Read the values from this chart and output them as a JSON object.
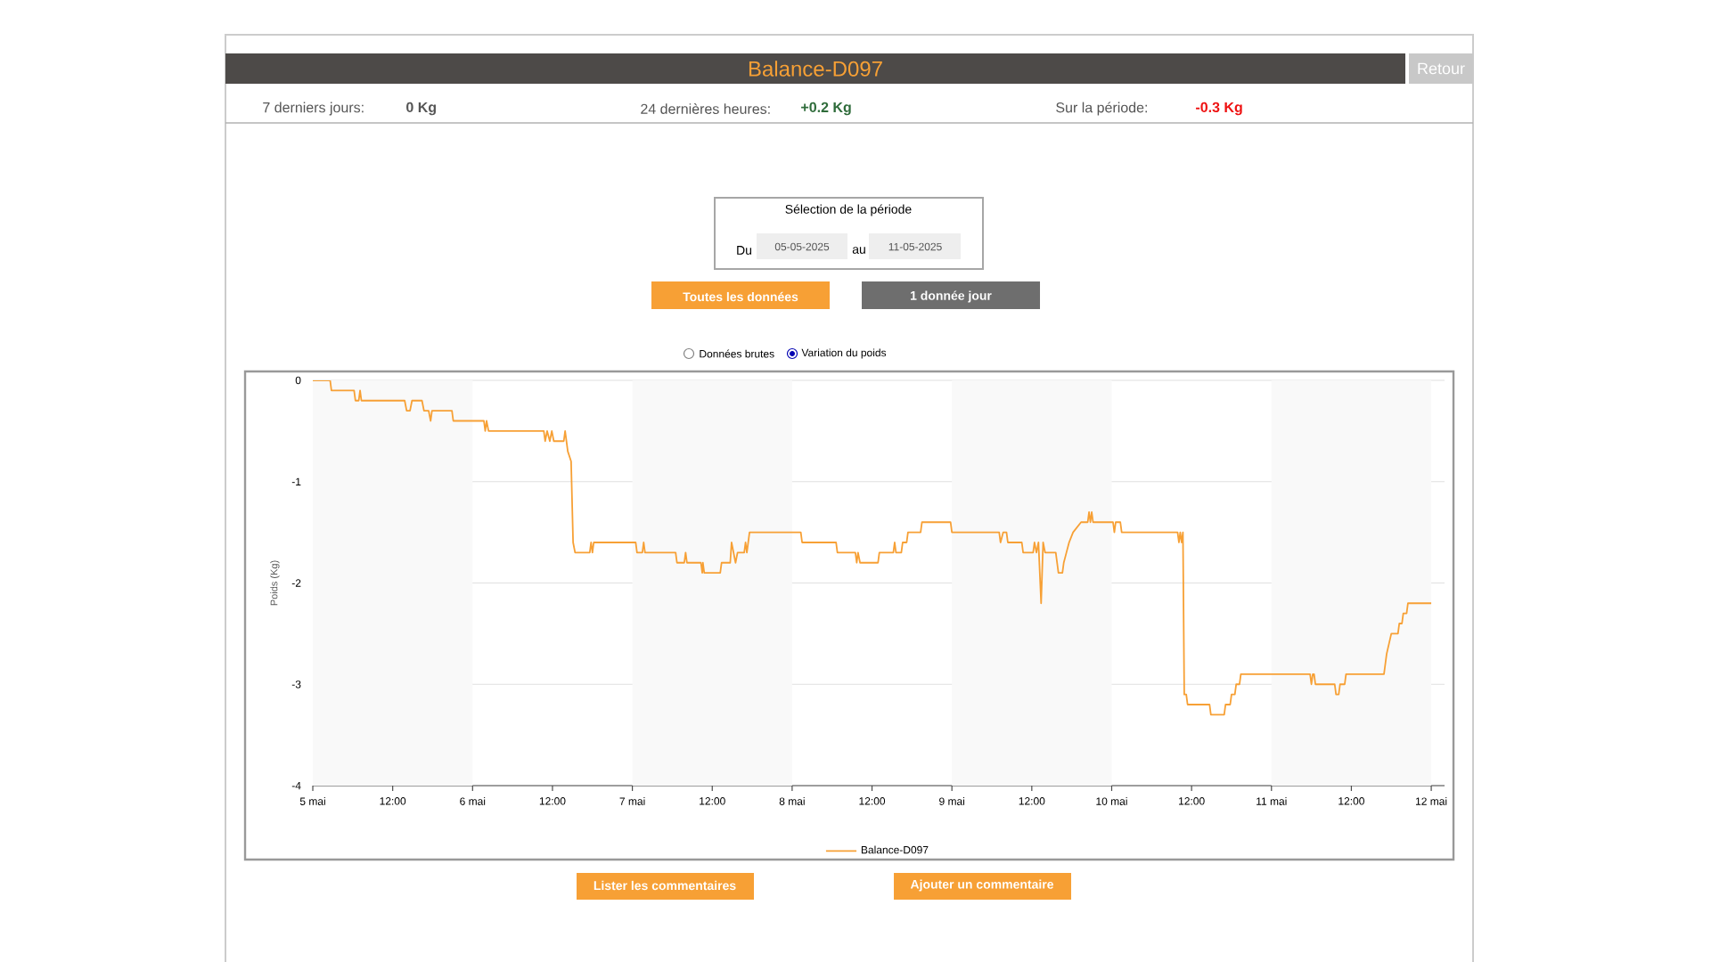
{
  "chart_data": {
    "type": "line",
    "title": "Balance-D097",
    "ylabel": "Poids (Kg)",
    "x": [
      "2025-05-05T00:00",
      "2025-05-05T02:36",
      "2025-05-05T02:48",
      "2025-05-05T06:12",
      "2025-05-05T06:24",
      "2025-05-05T06:54",
      "2025-05-05T07:06",
      "2025-05-05T07:18",
      "2025-05-05T13:48",
      "2025-05-05T14:06",
      "2025-05-05T14:36",
      "2025-05-05T14:54",
      "2025-05-05T16:24",
      "2025-05-05T16:42",
      "2025-05-05T17:24",
      "2025-05-05T17:42",
      "2025-05-05T17:54",
      "2025-05-05T20:54",
      "2025-05-05T21:06",
      "2025-05-06T01:42",
      "2025-05-06T01:54",
      "2025-05-06T02:06",
      "2025-05-06T02:24",
      "2025-05-06T10:42",
      "2025-05-06T10:54",
      "2025-05-06T11:12",
      "2025-05-06T11:36",
      "2025-05-06T11:54",
      "2025-05-06T12:12",
      "2025-05-06T13:42",
      "2025-05-06T13:54",
      "2025-05-06T14:18",
      "2025-05-06T14:48",
      "2025-05-06T15:06",
      "2025-05-06T15:24",
      "2025-05-06T17:36",
      "2025-05-06T17:48",
      "2025-05-06T18:00",
      "2025-05-06T18:12",
      "2025-05-07T00:30",
      "2025-05-07T00:42",
      "2025-05-07T01:30",
      "2025-05-07T01:42",
      "2025-05-07T01:54",
      "2025-05-07T06:30",
      "2025-05-07T06:42",
      "2025-05-07T07:48",
      "2025-05-07T08:00",
      "2025-05-07T08:12",
      "2025-05-07T10:18",
      "2025-05-07T10:30",
      "2025-05-07T10:36",
      "2025-05-07T10:48",
      "2025-05-07T13:12",
      "2025-05-07T13:24",
      "2025-05-07T14:42",
      "2025-05-07T14:54",
      "2025-05-07T15:30",
      "2025-05-07T15:48",
      "2025-05-07T16:48",
      "2025-05-07T17:00",
      "2025-05-07T17:12",
      "2025-05-07T17:36",
      "2025-05-08T01:18",
      "2025-05-08T01:30",
      "2025-05-08T06:36",
      "2025-05-08T06:48",
      "2025-05-08T09:30",
      "2025-05-08T09:42",
      "2025-05-08T09:54",
      "2025-05-08T10:12",
      "2025-05-08T12:54",
      "2025-05-08T13:06",
      "2025-05-08T15:12",
      "2025-05-08T15:24",
      "2025-05-08T15:36",
      "2025-05-08T16:24",
      "2025-05-08T16:36",
      "2025-05-08T17:12",
      "2025-05-08T17:24",
      "2025-05-08T19:18",
      "2025-05-08T19:30",
      "2025-05-08T23:48",
      "2025-05-09T00:00",
      "2025-05-09T07:06",
      "2025-05-09T07:18",
      "2025-05-09T07:42",
      "2025-05-09T08:12",
      "2025-05-09T08:24",
      "2025-05-09T10:30",
      "2025-05-09T10:42",
      "2025-05-09T12:12",
      "2025-05-09T12:24",
      "2025-05-09T12:42",
      "2025-05-09T13:00",
      "2025-05-09T13:24",
      "2025-05-09T13:42",
      "2025-05-09T14:00",
      "2025-05-09T15:36",
      "2025-05-09T15:48",
      "2025-05-09T16:00",
      "2025-05-09T16:36",
      "2025-05-09T16:48",
      "2025-05-09T17:12",
      "2025-05-09T17:36",
      "2025-05-09T18:12",
      "2025-05-09T19:24",
      "2025-05-09T20:24",
      "2025-05-09T20:36",
      "2025-05-09T20:48",
      "2025-05-09T21:00",
      "2025-05-09T21:12",
      "2025-05-10T00:12",
      "2025-05-10T00:24",
      "2025-05-10T00:36",
      "2025-05-10T01:18",
      "2025-05-10T01:30",
      "2025-05-10T09:54",
      "2025-05-10T10:06",
      "2025-05-10T10:18",
      "2025-05-10T10:30",
      "2025-05-10T10:42",
      "2025-05-10T10:54",
      "2025-05-10T11:12",
      "2025-05-10T11:24",
      "2025-05-10T14:42",
      "2025-05-10T14:54",
      "2025-05-10T16:54",
      "2025-05-10T17:06",
      "2025-05-10T17:48",
      "2025-05-10T18:00",
      "2025-05-10T18:30",
      "2025-05-10T18:42",
      "2025-05-10T19:12",
      "2025-05-10T19:24",
      "2025-05-11T05:48",
      "2025-05-11T06:00",
      "2025-05-11T06:12",
      "2025-05-11T06:24",
      "2025-05-11T06:36",
      "2025-05-11T09:30",
      "2025-05-11T09:42",
      "2025-05-11T10:06",
      "2025-05-11T10:18",
      "2025-05-11T11:00",
      "2025-05-11T11:12",
      "2025-05-11T16:54",
      "2025-05-11T17:06",
      "2025-05-11T17:18",
      "2025-05-11T18:00",
      "2025-05-11T19:00",
      "2025-05-11T19:12",
      "2025-05-11T19:36",
      "2025-05-11T19:48",
      "2025-05-11T20:18",
      "2025-05-11T20:30",
      "2025-05-12T00:00"
    ],
    "series": [
      {
        "name": "Balance-D097",
        "color": "#f7a035",
        "values": [
          0,
          0,
          -0.1,
          -0.1,
          -0.2,
          -0.2,
          -0.1,
          -0.2,
          -0.2,
          -0.3,
          -0.3,
          -0.2,
          -0.2,
          -0.3,
          -0.3,
          -0.4,
          -0.3,
          -0.3,
          -0.4,
          -0.4,
          -0.5,
          -0.4,
          -0.5,
          -0.5,
          -0.6,
          -0.5,
          -0.6,
          -0.5,
          -0.6,
          -0.6,
          -0.5,
          -0.7,
          -0.8,
          -1.6,
          -1.7,
          -1.7,
          -1.6,
          -1.7,
          -1.6,
          -1.6,
          -1.7,
          -1.7,
          -1.6,
          -1.7,
          -1.7,
          -1.8,
          -1.8,
          -1.7,
          -1.8,
          -1.8,
          -1.9,
          -1.8,
          -1.9,
          -1.9,
          -1.8,
          -1.8,
          -1.6,
          -1.8,
          -1.7,
          -1.7,
          -1.6,
          -1.7,
          -1.5,
          -1.5,
          -1.6,
          -1.6,
          -1.7,
          -1.7,
          -1.8,
          -1.7,
          -1.8,
          -1.8,
          -1.7,
          -1.7,
          -1.6,
          -1.7,
          -1.7,
          -1.6,
          -1.6,
          -1.5,
          -1.5,
          -1.4,
          -1.4,
          -1.5,
          -1.5,
          -1.6,
          -1.5,
          -1.5,
          -1.6,
          -1.6,
          -1.7,
          -1.7,
          -1.6,
          -1.7,
          -1.6,
          -2.2,
          -1.6,
          -1.7,
          -1.7,
          -1.8,
          -1.9,
          -1.9,
          -1.8,
          -1.7,
          -1.6,
          -1.5,
          -1.4,
          -1.4,
          -1.3,
          -1.4,
          -1.3,
          -1.4,
          -1.4,
          -1.5,
          -1.4,
          -1.4,
          -1.5,
          -1.5,
          -1.6,
          -1.5,
          -1.6,
          -1.5,
          -3.1,
          -3.1,
          -3.2,
          -3.2,
          -3.3,
          -3.3,
          -3.2,
          -3.2,
          -3.1,
          -3.1,
          -3.0,
          -3.0,
          -2.9,
          -2.9,
          -3.0,
          -2.9,
          -2.9,
          -3.0,
          -3.0,
          -3.1,
          -3.1,
          -3.0,
          -3.0,
          -2.9,
          -2.9,
          -2.8,
          -2.7,
          -2.5,
          -2.5,
          -2.4,
          -2.4,
          -2.3,
          -2.3,
          -2.2,
          -2.2
        ]
      }
    ],
    "xlim": [
      "2025-05-05T00:00",
      "2025-05-12T02:00"
    ],
    "ylim": [
      -4,
      0
    ],
    "xticks": [
      {
        "value": "2025-05-05T00:00",
        "label": "5 mai"
      },
      {
        "value": "2025-05-05T12:00",
        "label": "12:00"
      },
      {
        "value": "2025-05-06T00:00",
        "label": "6 mai"
      },
      {
        "value": "2025-05-06T12:00",
        "label": "12:00"
      },
      {
        "value": "2025-05-07T00:00",
        "label": "7 mai"
      },
      {
        "value": "2025-05-07T12:00",
        "label": "12:00"
      },
      {
        "value": "2025-05-08T00:00",
        "label": "8 mai"
      },
      {
        "value": "2025-05-08T12:00",
        "label": "12:00"
      },
      {
        "value": "2025-05-09T00:00",
        "label": "9 mai"
      },
      {
        "value": "2025-05-09T12:00",
        "label": "12:00"
      },
      {
        "value": "2025-05-10T00:00",
        "label": "10 mai"
      },
      {
        "value": "2025-05-10T12:00",
        "label": "12:00"
      },
      {
        "value": "2025-05-11T00:00",
        "label": "11 mai"
      },
      {
        "value": "2025-05-11T12:00",
        "label": "12:00"
      },
      {
        "value": "2025-05-12T00:00",
        "label": "12 mai"
      }
    ],
    "yticks": [
      0,
      -1,
      -2,
      -3,
      -4
    ],
    "grid": "y",
    "legend": "bottom",
    "marker": "none",
    "line_style": "solid",
    "bands": [
      {
        "axis": "x",
        "from": "2025-05-05T00:00",
        "to": "2025-05-06T00:00",
        "color": "#f9f9f9"
      },
      {
        "axis": "x",
        "from": "2025-05-07T00:00",
        "to": "2025-05-08T00:00",
        "color": "#f9f9f9"
      },
      {
        "axis": "x",
        "from": "2025-05-09T00:00",
        "to": "2025-05-10T00:00",
        "color": "#f9f9f9"
      },
      {
        "axis": "x",
        "from": "2025-05-11T00:00",
        "to": "2025-05-12T00:00",
        "color": "#f9f9f9"
      }
    ],
    "annotations": [
      "7 derniers jours:",
      "0 Kg",
      "24 dernières heures:",
      "+0.2 Kg",
      "Sur la période:",
      "-0.3 Kg",
      "Sélection de la période",
      "Du",
      "05-05-2025",
      "au",
      "11-05-2025",
      "Toutes les données",
      "1 donnée jour",
      "Données brutes",
      "Variation du poids",
      "Lister les commentaires",
      "Ajouter un commentaire",
      "Retour"
    ]
  }
}
